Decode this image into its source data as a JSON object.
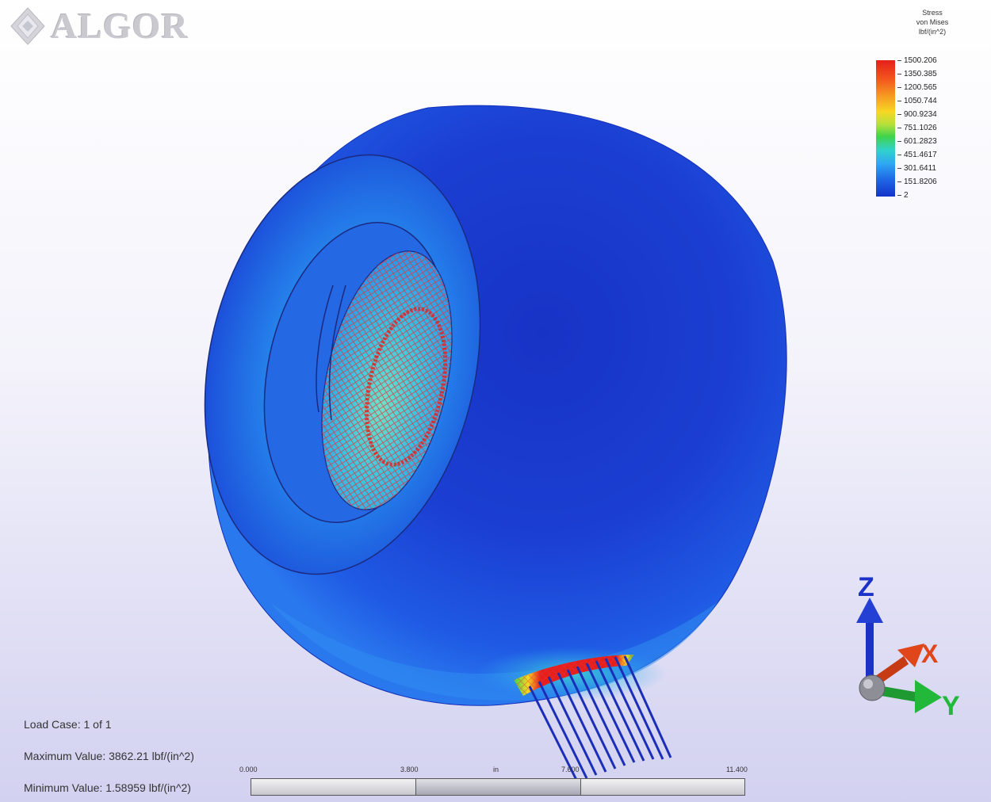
{
  "app": {
    "brand": "ALGOR"
  },
  "legend": {
    "title_lines": [
      "Stress",
      "von Mises",
      "lbf/(in^2)"
    ],
    "ticks": [
      "1500.206",
      "1350.385",
      "1200.565",
      "1050.744",
      "900.9234",
      "751.1026",
      "601.2823",
      "451.4617",
      "301.6411",
      "151.8206",
      "2"
    ],
    "colors": [
      "#e5201c",
      "#f4561e",
      "#f59a21",
      "#f7d823",
      "#3fd34b",
      "#2fd3cd",
      "#2fa6f2",
      "#1f64e6",
      "#1433c9"
    ]
  },
  "info": {
    "load_case": "Load Case:  1 of 1",
    "maximum": "Maximum Value: 3862.21 lbf/(in^2)",
    "minimum": "Minimum Value: 1.58959 lbf/(in^2)"
  },
  "scale": {
    "labels": [
      "0.000",
      "3.800",
      "in",
      "7.600",
      "11.400"
    ]
  },
  "triad": {
    "z_label": "Z",
    "x_label": "X",
    "y_label": "Y",
    "z_color": "#1a32c8",
    "x_color": "#e0461a",
    "y_color": "#22b83a"
  },
  "model": {
    "body_color": "#1a3ad0",
    "hotspot_color": "#e0201a"
  }
}
